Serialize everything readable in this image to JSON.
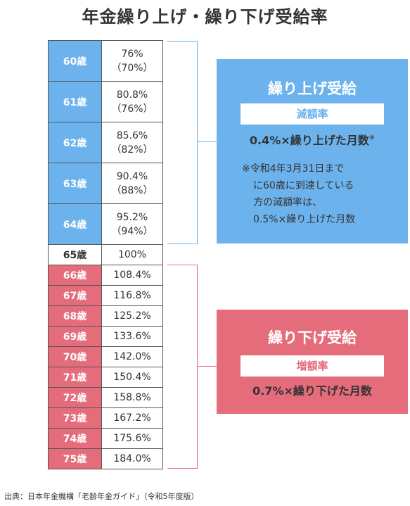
{
  "title": "年金繰り上げ・繰り下げ受給率",
  "early_rows": [
    {
      "age": "60歳",
      "rate": "76%",
      "old": "（70%）"
    },
    {
      "age": "61歳",
      "rate": "80.8%",
      "old": "（76%）"
    },
    {
      "age": "62歳",
      "rate": "85.6%",
      "old": "（82%）"
    },
    {
      "age": "63歳",
      "rate": "90.4%",
      "old": "（88%）"
    },
    {
      "age": "64歳",
      "rate": "95.2%",
      "old": "（94%）"
    }
  ],
  "base_row": {
    "age": "65歳",
    "rate": "100%"
  },
  "late_rows": [
    {
      "age": "66歳",
      "rate": "108.4%"
    },
    {
      "age": "67歳",
      "rate": "116.8%"
    },
    {
      "age": "68歳",
      "rate": "125.2%"
    },
    {
      "age": "69歳",
      "rate": "133.6%"
    },
    {
      "age": "70歳",
      "rate": "142.0%"
    },
    {
      "age": "71歳",
      "rate": "150.4%"
    },
    {
      "age": "72歳",
      "rate": "158.8%"
    },
    {
      "age": "73歳",
      "rate": "167.2%"
    },
    {
      "age": "74歳",
      "rate": "175.6%"
    },
    {
      "age": "75歳",
      "rate": "184.0%"
    }
  ],
  "early_box": {
    "title": "繰り上げ受給",
    "label": "減額率",
    "formula": "0.4%×繰り上げた月数",
    "formula_mark": "※",
    "note_lines": [
      "※令和4年3月31日まで",
      "に60歳に到達している",
      "方の減額率は、",
      "0.5%×繰り上げた月数"
    ]
  },
  "late_box": {
    "title": "繰り下げ受給",
    "label": "増額率",
    "formula": "0.7%×繰り下げた月数"
  },
  "source": "出典：日本年金機構「老齢年金ガイド」（令和5年度版）",
  "colors": {
    "early": "#6cb3ee",
    "late": "#e46c7b",
    "early_text": "#6cb3ee",
    "late_text": "#e46c7b"
  }
}
